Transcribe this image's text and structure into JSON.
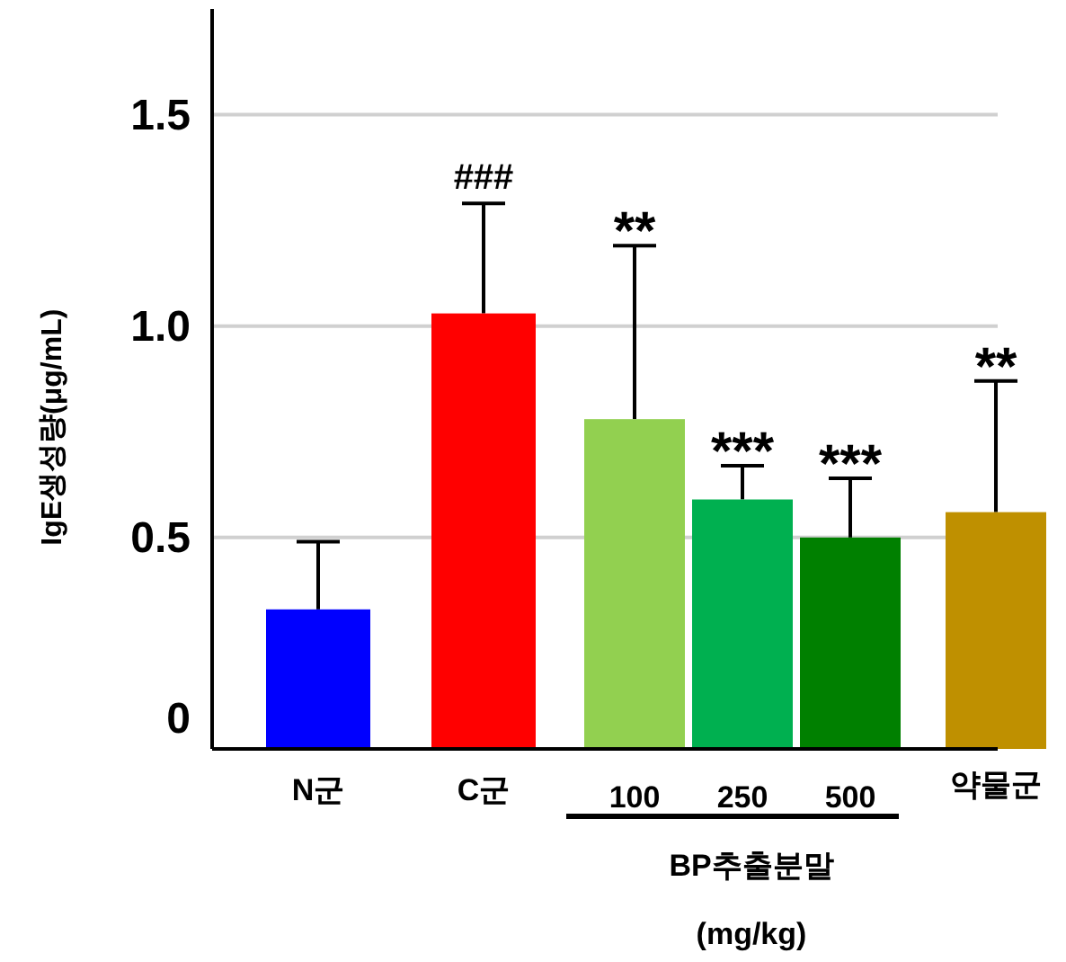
{
  "chart_data": {
    "type": "bar",
    "ylabel": "IgE생성량(μg/mL)",
    "categories": [
      "N군",
      "C군",
      "100",
      "250",
      "500",
      "약물군"
    ],
    "values": [
      0.33,
      1.03,
      0.78,
      0.59,
      0.5,
      0.56
    ],
    "colors": [
      "#0000ff",
      "#ff0000",
      "#92d050",
      "#00b050",
      "#008000",
      "#bf9000"
    ],
    "errors": [
      0.16,
      0.26,
      0.41,
      0.08,
      0.14,
      0.31
    ],
    "ylim": [
      0,
      1.75
    ],
    "yticks": [
      0,
      0.5,
      {
        "value": 1,
        "label": "1.0"
      },
      1.5
    ],
    "grid": "y",
    "annotations": [
      {
        "text": "###",
        "x": "C군",
        "y": 1.29
      },
      {
        "text": "**",
        "x": "100",
        "y": 1.19
      },
      {
        "text": "***",
        "x": "250",
        "y": 0.67
      },
      {
        "text": "***",
        "x": "500",
        "y": 0.64
      },
      {
        "text": "**",
        "x": "약물군",
        "y": 0.87
      },
      "BP추출분말",
      "(mg/kg)"
    ]
  }
}
